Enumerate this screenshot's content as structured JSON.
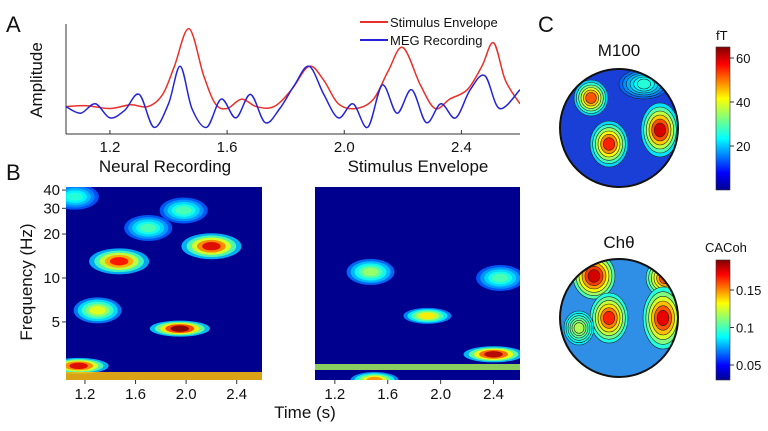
{
  "panels": {
    "a": "A",
    "b": "B",
    "c": "C"
  },
  "colors": {
    "stimulus": "#e8302a",
    "meg": "#2424d6"
  },
  "chart_data": [
    {
      "type": "line",
      "panel": "A",
      "ylabel": "Amplitude",
      "xlim": [
        1.05,
        2.6
      ],
      "xticks": [
        "1.2",
        "1.6",
        "2.0",
        "2.4"
      ],
      "xtick_values": [
        1.2,
        1.6,
        2.0,
        2.4
      ],
      "grid": false,
      "legend_position": "top-right",
      "series": [
        {
          "name": "Stimulus Envelope",
          "color": "#e8302a",
          "x": [
            1.05,
            1.12,
            1.2,
            1.27,
            1.33,
            1.38,
            1.42,
            1.47,
            1.52,
            1.56,
            1.6,
            1.65,
            1.7,
            1.76,
            1.82,
            1.88,
            1.93,
            1.98,
            2.04,
            2.1,
            2.15,
            2.2,
            2.26,
            2.31,
            2.36,
            2.42,
            2.47,
            2.51,
            2.55,
            2.6
          ],
          "y": [
            0.12,
            0.13,
            0.1,
            0.14,
            0.12,
            0.25,
            0.55,
            0.95,
            0.45,
            0.15,
            0.1,
            0.2,
            0.12,
            0.12,
            0.3,
            0.55,
            0.4,
            0.15,
            0.1,
            0.2,
            0.5,
            0.75,
            0.35,
            0.1,
            0.2,
            0.3,
            0.55,
            0.8,
            0.4,
            0.15
          ]
        },
        {
          "name": "MEG Recording",
          "color": "#2424d6",
          "x": [
            1.05,
            1.1,
            1.15,
            1.2,
            1.25,
            1.3,
            1.35,
            1.4,
            1.44,
            1.48,
            1.53,
            1.58,
            1.63,
            1.68,
            1.73,
            1.78,
            1.83,
            1.88,
            1.93,
            1.98,
            2.03,
            2.08,
            2.13,
            2.18,
            2.23,
            2.28,
            2.33,
            2.38,
            2.43,
            2.48,
            2.53,
            2.6
          ],
          "y": [
            0.12,
            0.05,
            0.15,
            0.0,
            0.08,
            0.25,
            -0.1,
            0.15,
            0.55,
            0.1,
            -0.1,
            0.2,
            0.0,
            0.25,
            -0.05,
            0.1,
            0.35,
            0.55,
            0.25,
            0.0,
            0.15,
            -0.1,
            0.35,
            0.05,
            0.3,
            -0.05,
            0.15,
            0.0,
            0.3,
            0.45,
            0.1,
            0.3
          ]
        }
      ]
    },
    {
      "type": "heatmap",
      "panel": "B",
      "title": "Neural Recording",
      "title_color": "#2424d6",
      "ylabel": "Frequency (Hz)",
      "yticks": [
        "5",
        "10",
        "20",
        "30",
        "40"
      ],
      "ytick_values": [
        5,
        10,
        20,
        30,
        40
      ],
      "xticks": [
        "1.2",
        "1.6",
        "2.0",
        "2.4"
      ],
      "xtick_values": [
        1.2,
        1.6,
        2.0,
        2.4
      ],
      "xlim": [
        1.05,
        2.6
      ],
      "blobs": [
        {
          "x": 1.47,
          "f": 13,
          "intensity": 0.85
        },
        {
          "x": 2.2,
          "f": 16.5,
          "intensity": 0.9
        },
        {
          "x": 1.95,
          "f": 4.5,
          "intensity": 1.0
        },
        {
          "x": 1.3,
          "f": 6,
          "intensity": 0.55
        },
        {
          "x": 1.15,
          "f": 2.5,
          "intensity": 0.9
        },
        {
          "x": 1.7,
          "f": 22,
          "intensity": 0.35
        },
        {
          "x": 1.98,
          "f": 29,
          "intensity": 0.35
        },
        {
          "x": 1.12,
          "f": 36,
          "intensity": 0.3
        }
      ]
    },
    {
      "type": "heatmap",
      "panel": "B",
      "title": "Stimulus Envelope",
      "title_color": "#e8302a",
      "xlabel": "Time (s)",
      "xticks": [
        "1.2",
        "1.6",
        "2.0",
        "2.4"
      ],
      "xtick_values": [
        1.2,
        1.6,
        2.0,
        2.4
      ],
      "xlim": [
        1.05,
        2.6
      ],
      "blobs": [
        {
          "x": 1.47,
          "f": 11,
          "intensity": 0.45
        },
        {
          "x": 1.9,
          "f": 5.5,
          "intensity": 0.6
        },
        {
          "x": 2.4,
          "f": 3,
          "intensity": 0.95
        },
        {
          "x": 1.5,
          "f": 2,
          "intensity": 0.7
        },
        {
          "x": 2.45,
          "f": 10,
          "intensity": 0.35
        }
      ]
    },
    {
      "type": "heatmap",
      "panel": "C",
      "title": "M100",
      "colorbar": {
        "label": "fT",
        "ticks": [
          "20",
          "40",
          "60"
        ],
        "tick_values": [
          20,
          40,
          60
        ],
        "range": [
          0,
          65
        ]
      }
    },
    {
      "type": "heatmap",
      "panel": "C",
      "title": "Chθ",
      "colorbar": {
        "label": "CACoh",
        "ticks": [
          "0.05",
          "0.1",
          "0.15"
        ],
        "tick_values": [
          0.05,
          0.1,
          0.15
        ],
        "range": [
          0.03,
          0.19
        ]
      }
    }
  ]
}
